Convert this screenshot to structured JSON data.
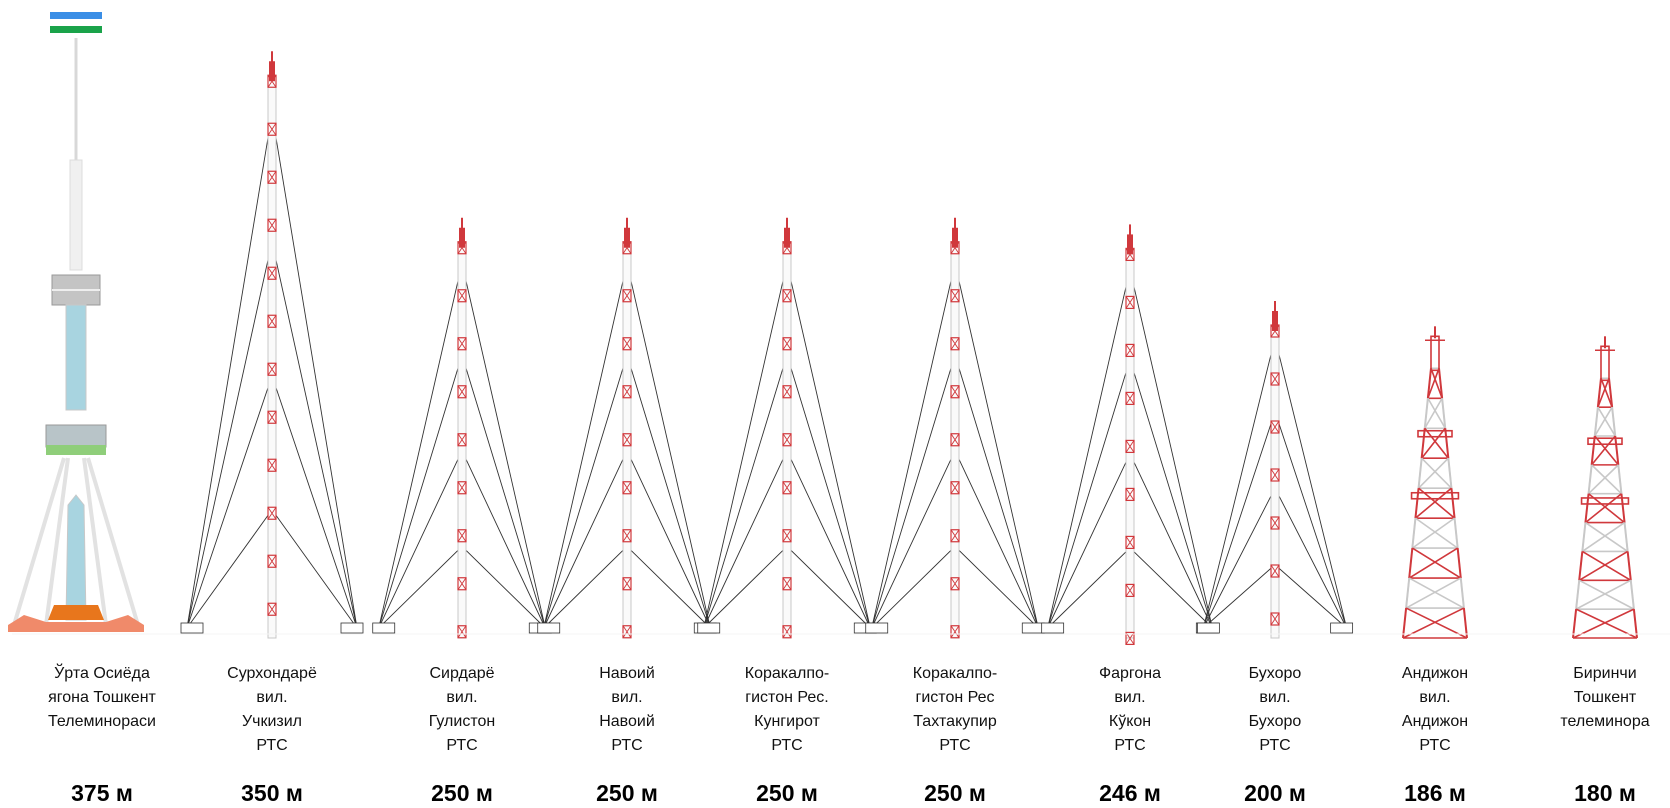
{
  "towers": [
    {
      "name": "Ўрта Осиёда\nягона Тошкент\nТелеминораси",
      "height_label": "375 м",
      "height_m": 375,
      "kind": "tv-tower"
    },
    {
      "name": "Сурхондарё\nвил.\nУчкизил\nРТС",
      "height_label": "350 м",
      "height_m": 350,
      "kind": "guyed-mast"
    },
    {
      "name": "Сирдарё\nвил.\nГулистон\nРТС",
      "height_label": "250 м",
      "height_m": 250,
      "kind": "guyed-mast"
    },
    {
      "name": "Навоий\nвил.\nНавоий\nРТС",
      "height_label": "250 м",
      "height_m": 250,
      "kind": "guyed-mast"
    },
    {
      "name": "Коракалпо-\nгистон Рес.\nКунгирот\nРТС",
      "height_label": "250 м",
      "height_m": 250,
      "kind": "guyed-mast"
    },
    {
      "name": "Коракалпо-\nгистон Рес\nТахтакупир\nРТС",
      "height_label": "250 м",
      "height_m": 250,
      "kind": "guyed-mast"
    },
    {
      "name": "Фаргона\nвил.\nКўкон\nРТС",
      "height_label": "246 м",
      "height_m": 246,
      "kind": "guyed-mast"
    },
    {
      "name": "Бухоро\nвил.\nБухоро\nРТС",
      "height_label": "200 м",
      "height_m": 200,
      "kind": "guyed-mast"
    },
    {
      "name": "Андижон\nвил.\nАндижон\nРТС",
      "height_label": "186 м",
      "height_m": 186,
      "kind": "lattice-tower"
    },
    {
      "name": "Биринчи\nТошкент\nтелеминора",
      "height_label": "180 м",
      "height_m": 180,
      "kind": "lattice-tower"
    }
  ],
  "colors": {
    "mast_red": "#d0383c",
    "mast_light": "#c8c8c8",
    "guy_wire": "#333333",
    "tv_shaft": "#f0f0f0",
    "tv_blue": "#a8d4e0",
    "tv_orange": "#e8761c",
    "tv_salmon": "#f08a6a",
    "tv_green": "#8fce7a",
    "flag_blue": "#3a8ee6",
    "flag_green": "#1aa34a"
  }
}
